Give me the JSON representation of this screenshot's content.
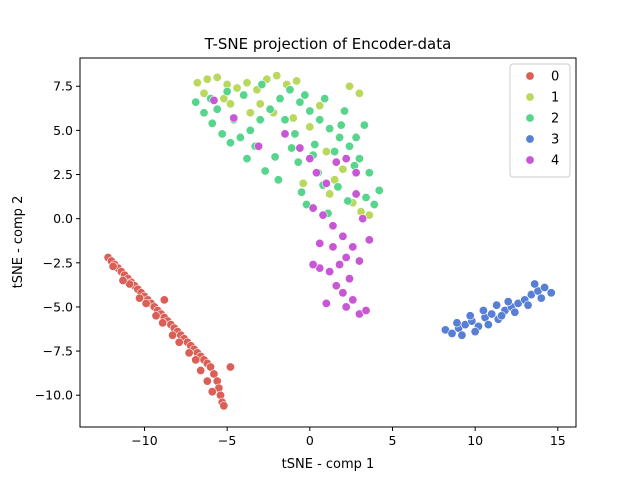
{
  "chart_data": {
    "type": "scatter",
    "title": "T-SNE projection of Encoder-data",
    "xlabel": "tSNE - comp 1",
    "ylabel": "tSNE - comp 2",
    "xlim": [
      -13.9,
      16.1
    ],
    "ylim": [
      -11.8,
      9.1
    ],
    "x_ticks": [
      -10,
      -5,
      0,
      5,
      10,
      15
    ],
    "y_ticks": [
      -10.0,
      -7.5,
      -5.0,
      -2.5,
      0.0,
      2.5,
      5.0,
      7.5
    ],
    "x_tick_labels": [
      "−10",
      "−5",
      "0",
      "5",
      "10",
      "15"
    ],
    "y_tick_labels": [
      "−10.0",
      "−7.5",
      "−5.0",
      "−2.5",
      "0.0",
      "2.5",
      "5.0",
      "7.5"
    ],
    "grid": false,
    "legend_position": "top-right",
    "series": [
      {
        "name": "0",
        "color": "#db5f57",
        "points": [
          [
            -12.2,
            -2.2
          ],
          [
            -12.0,
            -2.4
          ],
          [
            -11.8,
            -2.6
          ],
          [
            -11.6,
            -2.8
          ],
          [
            -11.4,
            -3.0
          ],
          [
            -11.2,
            -3.2
          ],
          [
            -11.0,
            -3.4
          ],
          [
            -10.8,
            -3.6
          ],
          [
            -10.6,
            -3.8
          ],
          [
            -10.4,
            -4.0
          ],
          [
            -10.2,
            -4.2
          ],
          [
            -10.0,
            -4.4
          ],
          [
            -9.8,
            -4.6
          ],
          [
            -9.6,
            -4.8
          ],
          [
            -9.4,
            -5.0
          ],
          [
            -9.2,
            -5.2
          ],
          [
            -9.0,
            -5.4
          ],
          [
            -8.8,
            -4.6
          ],
          [
            -8.8,
            -5.6
          ],
          [
            -8.6,
            -5.8
          ],
          [
            -8.4,
            -6.0
          ],
          [
            -8.2,
            -6.2
          ],
          [
            -8.0,
            -6.4
          ],
          [
            -7.8,
            -6.6
          ],
          [
            -7.6,
            -6.8
          ],
          [
            -7.4,
            -7.0
          ],
          [
            -7.2,
            -7.2
          ],
          [
            -7.0,
            -7.4
          ],
          [
            -6.8,
            -7.6
          ],
          [
            -6.6,
            -7.8
          ],
          [
            -6.4,
            -8.0
          ],
          [
            -6.2,
            -8.2
          ],
          [
            -6.0,
            -8.4
          ],
          [
            -5.8,
            -8.8
          ],
          [
            -5.6,
            -9.2
          ],
          [
            -5.5,
            -9.6
          ],
          [
            -5.4,
            -10.0
          ],
          [
            -5.3,
            -10.4
          ],
          [
            -5.2,
            -10.6
          ],
          [
            -4.8,
            -8.4
          ],
          [
            -6.6,
            -8.6
          ],
          [
            -6.2,
            -9.2
          ],
          [
            -5.9,
            -9.8
          ],
          [
            -11.9,
            -2.7
          ],
          [
            -10.9,
            -3.7
          ],
          [
            -9.9,
            -4.8
          ],
          [
            -8.9,
            -5.9
          ],
          [
            -7.9,
            -7.0
          ],
          [
            -6.9,
            -8.0
          ],
          [
            -11.3,
            -3.5
          ],
          [
            -10.3,
            -4.5
          ],
          [
            -9.3,
            -5.5
          ],
          [
            -8.3,
            -6.6
          ],
          [
            -7.3,
            -7.6
          ]
        ]
      },
      {
        "name": "1",
        "color": "#b9d85d",
        "points": [
          [
            -6.8,
            7.7
          ],
          [
            -6.2,
            7.9
          ],
          [
            -5.6,
            8.0
          ],
          [
            -5.0,
            7.6
          ],
          [
            -4.4,
            7.4
          ],
          [
            -3.8,
            7.7
          ],
          [
            -3.2,
            7.3
          ],
          [
            -2.6,
            7.9
          ],
          [
            -2.0,
            8.1
          ],
          [
            -1.4,
            7.6
          ],
          [
            -0.8,
            7.8
          ],
          [
            -6.4,
            7.1
          ],
          [
            -5.2,
            6.8
          ],
          [
            -3.0,
            6.5
          ],
          [
            -2.2,
            6.0
          ],
          [
            -1.0,
            5.7
          ],
          [
            0.0,
            5.2
          ],
          [
            1.0,
            3.8
          ],
          [
            1.5,
            2.2
          ],
          [
            2.0,
            2.8
          ],
          [
            1.2,
            1.4
          ],
          [
            2.6,
            0.9
          ],
          [
            3.1,
            0.4
          ],
          [
            2.4,
            7.5
          ],
          [
            3.0,
            7.1
          ],
          [
            0.6,
            6.4
          ],
          [
            -0.4,
            2.0
          ],
          [
            3.6,
            0.2
          ],
          [
            -3.6,
            6.0
          ],
          [
            -4.8,
            6.5
          ]
        ]
      },
      {
        "name": "2",
        "color": "#57d58c",
        "points": [
          [
            -6.9,
            6.6
          ],
          [
            -6.4,
            6.0
          ],
          [
            -5.9,
            5.4
          ],
          [
            -5.3,
            4.8
          ],
          [
            -4.8,
            4.3
          ],
          [
            -4.2,
            4.6
          ],
          [
            -3.6,
            5.0
          ],
          [
            -3.0,
            5.6
          ],
          [
            -2.4,
            6.2
          ],
          [
            -1.8,
            6.8
          ],
          [
            -1.2,
            7.3
          ],
          [
            -0.6,
            6.6
          ],
          [
            0.0,
            6.1
          ],
          [
            0.6,
            5.6
          ],
          [
            1.2,
            5.1
          ],
          [
            1.8,
            4.6
          ],
          [
            2.4,
            4.1
          ],
          [
            3.0,
            3.4
          ],
          [
            3.6,
            2.6
          ],
          [
            4.2,
            1.6
          ],
          [
            -5.6,
            6.2
          ],
          [
            -4.6,
            5.6
          ],
          [
            -3.3,
            4.1
          ],
          [
            -2.1,
            3.5
          ],
          [
            -0.9,
            4.8
          ],
          [
            0.3,
            4.2
          ],
          [
            1.5,
            3.8
          ],
          [
            2.7,
            3.0
          ],
          [
            -1.5,
            5.6
          ],
          [
            -0.3,
            7.0
          ],
          [
            0.9,
            6.8
          ],
          [
            2.1,
            6.1
          ],
          [
            3.3,
            5.3
          ],
          [
            -2.7,
            2.7
          ],
          [
            -1.9,
            2.2
          ],
          [
            -0.7,
            3.2
          ],
          [
            0.5,
            2.6
          ],
          [
            1.7,
            1.8
          ],
          [
            3.9,
            0.8
          ],
          [
            -4.0,
            7.0
          ],
          [
            -2.9,
            7.6
          ],
          [
            -0.2,
            0.8
          ],
          [
            1.1,
            0.3
          ],
          [
            2.3,
            1.0
          ],
          [
            -5.0,
            7.2
          ],
          [
            -6.0,
            6.8
          ],
          [
            0.2,
            3.6
          ],
          [
            1.9,
            5.3
          ],
          [
            -1.1,
            4.0
          ],
          [
            2.8,
            4.6
          ],
          [
            3.4,
            1.2
          ],
          [
            -3.8,
            3.4
          ],
          [
            -0.5,
            1.5
          ],
          [
            0.8,
            1.9
          ]
        ]
      },
      {
        "name": "3",
        "color": "#577fd5",
        "points": [
          [
            8.2,
            -6.3
          ],
          [
            8.6,
            -6.5
          ],
          [
            9.0,
            -6.2
          ],
          [
            9.4,
            -6.0
          ],
          [
            9.8,
            -5.8
          ],
          [
            10.2,
            -6.1
          ],
          [
            10.6,
            -5.6
          ],
          [
            11.0,
            -5.4
          ],
          [
            11.4,
            -5.7
          ],
          [
            11.8,
            -5.2
          ],
          [
            12.2,
            -5.0
          ],
          [
            12.6,
            -4.8
          ],
          [
            13.0,
            -4.6
          ],
          [
            13.4,
            -4.3
          ],
          [
            13.8,
            -4.1
          ],
          [
            14.2,
            -3.9
          ],
          [
            14.6,
            -4.2
          ],
          [
            9.2,
            -6.6
          ],
          [
            10.0,
            -6.4
          ],
          [
            10.8,
            -6.0
          ],
          [
            11.6,
            -5.5
          ],
          [
            12.4,
            -5.3
          ],
          [
            13.2,
            -4.9
          ],
          [
            14.0,
            -4.5
          ],
          [
            8.9,
            -5.9
          ],
          [
            9.7,
            -5.5
          ],
          [
            10.5,
            -5.2
          ],
          [
            11.3,
            -4.9
          ],
          [
            12.0,
            -4.7
          ],
          [
            13.6,
            -3.7
          ]
        ]
      },
      {
        "name": "4",
        "color": "#c957d5",
        "points": [
          [
            -5.8,
            6.7
          ],
          [
            -4.6,
            5.7
          ],
          [
            -3.1,
            4.1
          ],
          [
            -1.5,
            4.8
          ],
          [
            0.4,
            2.6
          ],
          [
            1.0,
            2.0
          ],
          [
            1.6,
            3.2
          ],
          [
            2.2,
            3.4
          ],
          [
            2.8,
            2.6
          ],
          [
            0.2,
            0.6
          ],
          [
            0.8,
            0.2
          ],
          [
            1.4,
            -0.4
          ],
          [
            2.0,
            -1.0
          ],
          [
            2.6,
            -1.6
          ],
          [
            2.2,
            -2.2
          ],
          [
            1.8,
            -2.6
          ],
          [
            1.2,
            -3.0
          ],
          [
            2.4,
            -3.4
          ],
          [
            1.6,
            -3.8
          ],
          [
            2.0,
            -4.2
          ],
          [
            2.6,
            -4.6
          ],
          [
            2.2,
            -5.0
          ],
          [
            3.0,
            -5.4
          ],
          [
            3.4,
            -5.2
          ],
          [
            0.6,
            -2.8
          ],
          [
            0.2,
            -2.6
          ],
          [
            1.0,
            -4.8
          ],
          [
            1.4,
            -1.6
          ],
          [
            3.2,
            0.0
          ],
          [
            3.6,
            -1.2
          ],
          [
            3.0,
            -2.4
          ],
          [
            0.6,
            -1.4
          ],
          [
            2.8,
            1.4
          ],
          [
            -0.6,
            4.0
          ],
          [
            0.0,
            3.4
          ]
        ]
      }
    ]
  }
}
